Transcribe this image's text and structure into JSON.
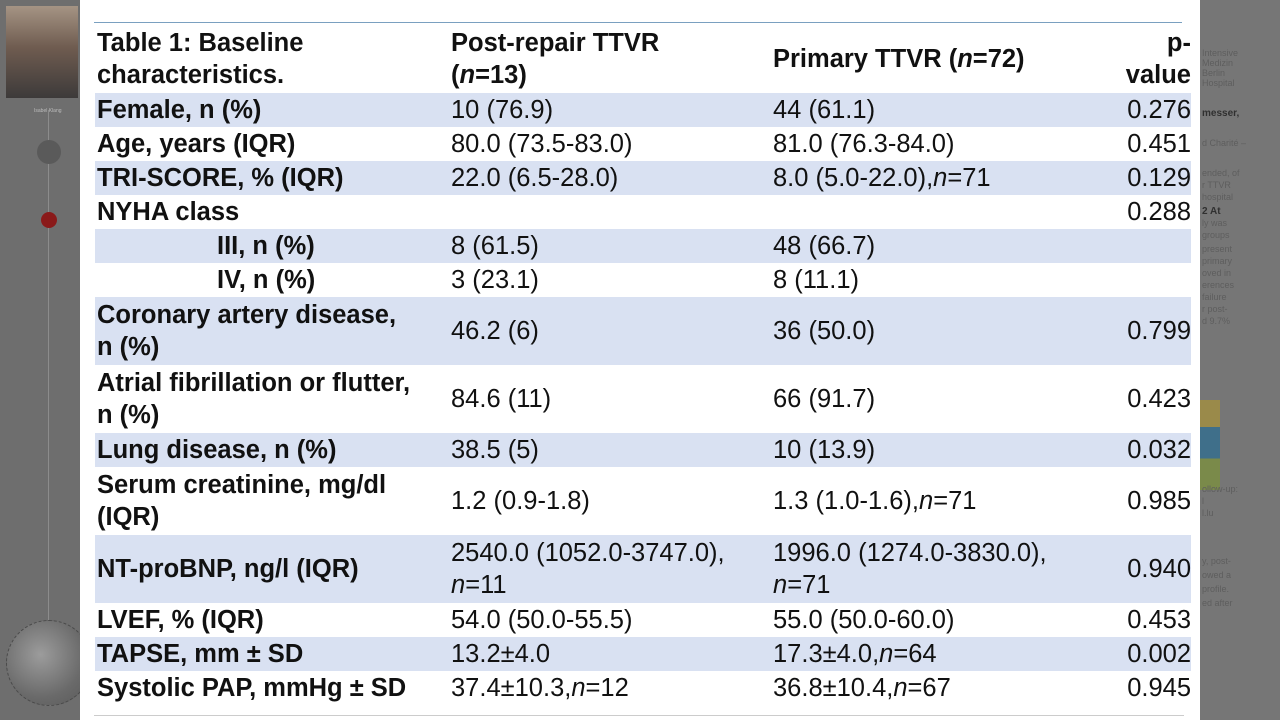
{
  "background": {
    "photo_caption": "Isabel Klang",
    "right_fragments": [
      "Intensive",
      "Medizin",
      "Berlin",
      "Hospital",
      "",
      "messer,",
      "",
      "d Charité –",
      "",
      "ended, of",
      "r TTVR",
      "hospital",
      "2 At",
      "ly was",
      "groups",
      "present",
      "primary",
      "oved in",
      "erences",
      "failure",
      "r post-",
      "d 9.7%"
    ],
    "right_fragments2": [
      "ollow-up:",
      "l",
      "l.lu",
      "",
      "y, post-",
      "owed a",
      "profile.",
      "ed after"
    ]
  },
  "table": {
    "header": {
      "col1_line1": "Table 1: Baseline",
      "col1_line2": "characteristics.",
      "col2_line1": "Post-repair TTVR",
      "col2_line2_n": "n",
      "col2_line2_rest": "=13)",
      "col2_line2_open": "(",
      "col3_pre": "Primary TTVR (",
      "col3_n": "n",
      "col3_post": "=72)",
      "col4_line1": "p-",
      "col4_line2": "value"
    },
    "rows": [
      {
        "label": "Female, n (%)",
        "post": "10 (76.9)",
        "primary": "44 (61.1)",
        "primary_n": "",
        "p": "0.276"
      },
      {
        "label": "Age, years (IQR)",
        "post": "80.0 (73.5-83.0)",
        "primary": "81.0 (76.3-84.0)",
        "primary_n": "",
        "p": "0.451"
      },
      {
        "label": "TRI-SCORE, % (IQR)",
        "post": "22.0 (6.5-28.0)",
        "primary": "8.0 (5.0-22.0), ",
        "primary_n": "=71",
        "p": "0.129"
      },
      {
        "label": "NYHA class",
        "post": "",
        "primary": "",
        "primary_n": "",
        "p": "0.288"
      },
      {
        "label": "III, n (%)",
        "post": "8 (61.5)",
        "primary": "48 (66.7)",
        "primary_n": "",
        "p": ""
      },
      {
        "label": "IV, n (%)",
        "post": "3 (23.1)",
        "primary": "8 (11.1)",
        "primary_n": "",
        "p": ""
      },
      {
        "label_line1": "Coronary artery disease,",
        "label_line2": "n (%)",
        "post": "46.2 (6)",
        "primary": "36 (50.0)",
        "primary_n": "",
        "p": "0.799"
      },
      {
        "label_line1": "Atrial fibrillation or flutter,",
        "label_line2": "n (%)",
        "post": "84.6 (11)",
        "primary": "66 (91.7)",
        "primary_n": "",
        "p": "0.423"
      },
      {
        "label": "Lung disease, n (%)",
        "post": "38.5 (5)",
        "primary": "10 (13.9)",
        "primary_n": "",
        "p": "0.032"
      },
      {
        "label_line1": "Serum creatinine, mg/dl",
        "label_line2": "(IQR)",
        "post": "1.2 (0.9-1.8)",
        "primary": "1.3 (1.0-1.6), ",
        "primary_n": "=71",
        "p": "0.985"
      },
      {
        "label": "NT-proBNP, ng/l (IQR)",
        "post_line1": "2540.0 (1052.0-3747.0),",
        "post_line2_n": "=11",
        "primary_line1": "1996.0 (1274.0-3830.0),",
        "primary_line2_n": "=71",
        "p": "0.940"
      },
      {
        "label": "LVEF, % (IQR)",
        "post": "54.0 (50.0-55.5)",
        "primary": "55.0 (50.0-60.0)",
        "primary_n": "",
        "p": "0.453"
      },
      {
        "label": "TAPSE, mm ± SD",
        "post": "13.2±4.0",
        "primary": "17.3±4.0, ",
        "primary_n": "=64",
        "p": "0.002"
      },
      {
        "label": "Systolic PAP, mmHg ± SD",
        "post": "37.4±10.3, ",
        "post_n": "=12",
        "primary": "36.8±10.4, ",
        "primary_n": "=67",
        "p": "0.945"
      }
    ],
    "n_letter": "n"
  }
}
